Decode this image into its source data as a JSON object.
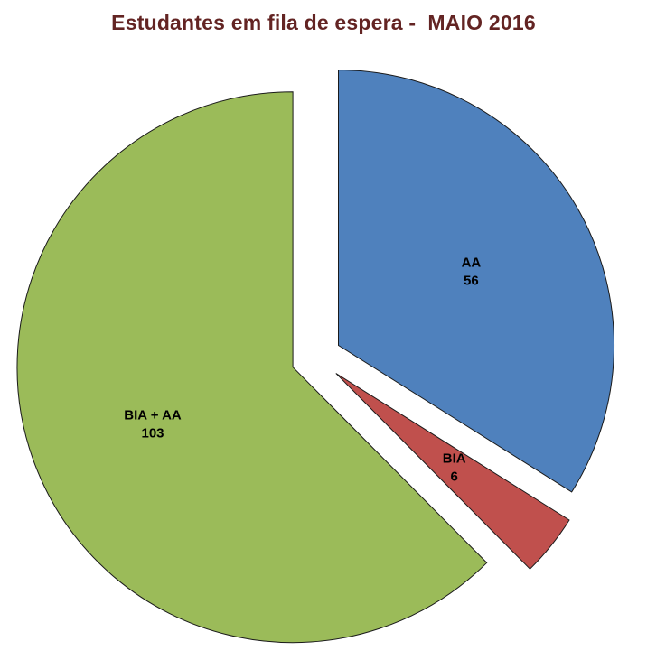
{
  "page": {
    "background": "#ffffff"
  },
  "chart_data": {
    "type": "pie",
    "title": "Estudantes em fila de espera -  MAIO 2016",
    "title_color": "#632423",
    "legend": "none",
    "exploded": true,
    "direction": "clockwise",
    "start_angle_deg": 0,
    "total": 165,
    "label_style": "category name above value, bold black, inside slice",
    "slices": [
      {
        "label": "AA",
        "value": 56,
        "color": "#4F81BD"
      },
      {
        "label": "BIA",
        "value": 6,
        "color": "#C0504D"
      },
      {
        "label": "BIA + AA",
        "value": 103,
        "color": "#9BBB59"
      }
    ]
  }
}
